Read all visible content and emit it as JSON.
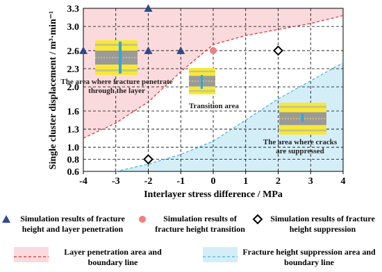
{
  "chart_data": {
    "type": "scatter",
    "x_label": "Interlayer stress difference / MPa",
    "y_label": "Single cluster displacement / m³·min⁻¹",
    "xlim": [
      -4,
      4
    ],
    "xticks": [
      -4,
      -3,
      -2,
      -1,
      0,
      1,
      2,
      3,
      4
    ],
    "ylim": [
      0.6,
      3.3
    ],
    "yticks": [
      0.6,
      0.8,
      {
        "value": 1,
        "label": "1.0"
      },
      1.3,
      1.6,
      {
        "value": 2,
        "label": "2.0"
      },
      2.3,
      2.6,
      {
        "value": 3,
        "label": "3.0"
      },
      3.3
    ],
    "grid": true,
    "series": [
      {
        "name": "Simulation results of fracture height and layer penetration",
        "color": "#2e4a8c",
        "marker": "triangle",
        "x": [
          -4,
          -2,
          -2,
          -1
        ],
        "values": [
          2.6,
          3.3,
          2.6,
          2.6
        ]
      },
      {
        "name": "Simulation results of fracture height transition",
        "color": "#f08080",
        "marker": "circle",
        "x": [
          0
        ],
        "values": [
          2.6
        ]
      },
      {
        "name": "Simulation results of fracture height suppression",
        "color": "#000000",
        "marker": "diamond",
        "x": [
          2,
          -2
        ],
        "values": [
          2.6,
          0.8
        ]
      }
    ],
    "regions": [
      {
        "name": "Layer penetration area and boundary line",
        "color": "#fadadd",
        "line_color": "#e8262a",
        "side": "above",
        "x": [
          -4,
          -3,
          -2,
          -1,
          0,
          1,
          2,
          3,
          4
        ],
        "values": [
          1.15,
          1.4,
          1.75,
          2.25,
          2.7,
          2.85,
          2.95,
          3.05,
          3.18
        ]
      },
      {
        "name": "Fracture height suppression area and boundary line",
        "color": "#d4eef8",
        "line_color": "#3cb4dc",
        "side": "below",
        "x": [
          -3,
          -2,
          -1,
          0,
          1,
          2,
          3,
          4
        ],
        "values": [
          0.6,
          0.72,
          0.88,
          1.1,
          1.45,
          1.8,
          2.1,
          2.4
        ]
      }
    ],
    "annotations": [
      [
        "The area where fracture penetrate",
        "through the layer"
      ],
      [
        "Transition area"
      ],
      [
        "The area where cracks",
        "are suppressed"
      ]
    ]
  }
}
